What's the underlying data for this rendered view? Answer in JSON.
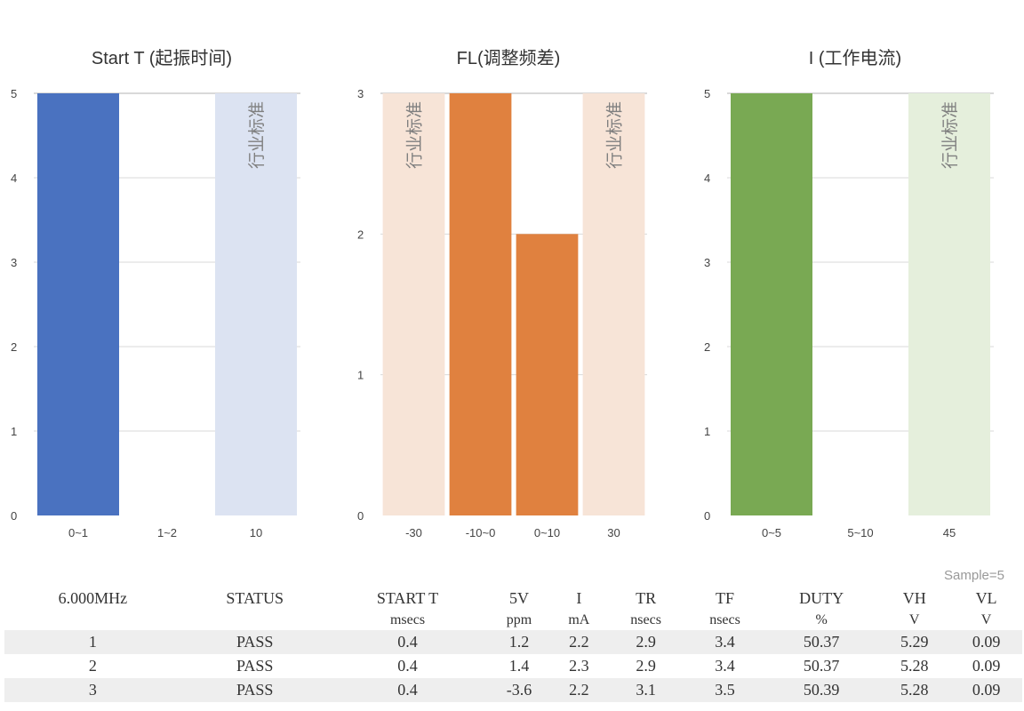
{
  "chart_data": [
    {
      "type": "bar",
      "title": "Start T (起振时间)",
      "categories": [
        "0~1",
        "1~2",
        "10"
      ],
      "values": [
        5,
        0,
        null
      ],
      "bands": [
        {
          "category": "10",
          "label": "行业标准"
        }
      ],
      "ylim": [
        0,
        5
      ],
      "yticks": [
        0,
        1,
        2,
        3,
        4,
        5
      ],
      "grid": true,
      "colors": {
        "bar": "#4a72c0",
        "band": "#dce3f2"
      }
    },
    {
      "type": "bar",
      "title": "FL(调整频差)",
      "categories": [
        "-30",
        "-10~0",
        "0~10",
        "30"
      ],
      "values": [
        null,
        3,
        2,
        null
      ],
      "bands": [
        {
          "category": "-30",
          "label": "行业标准"
        },
        {
          "category": "30",
          "label": "行业标准"
        }
      ],
      "ylim": [
        0,
        3
      ],
      "yticks": [
        0,
        1,
        2,
        3
      ],
      "grid": true,
      "colors": {
        "bar": "#e0813f",
        "band": "#f7e4d7"
      }
    },
    {
      "type": "bar",
      "title": "I (工作电流)",
      "categories": [
        "0~5",
        "5~10",
        "45"
      ],
      "values": [
        5,
        0,
        null
      ],
      "bands": [
        {
          "category": "45",
          "label": "行业标准"
        }
      ],
      "ylim": [
        0,
        5
      ],
      "yticks": [
        0,
        1,
        2,
        3,
        4,
        5
      ],
      "grid": true,
      "colors": {
        "bar": "#79a953",
        "band": "#e5efdc"
      }
    }
  ],
  "table": {
    "sample": "Sample=5",
    "headers": [
      "6.000MHz",
      "STATUS",
      "START T",
      "5V",
      "I",
      "TR",
      "TF",
      "DUTY",
      "VH",
      "VL"
    ],
    "units": [
      "",
      "",
      "msecs",
      "ppm",
      "mA",
      "nsecs",
      "nsecs",
      "%",
      "V",
      "V"
    ],
    "rows": [
      [
        "1",
        "PASS",
        "0.4",
        "1.2",
        "2.2",
        "2.9",
        "3.4",
        "50.37",
        "5.29",
        "0.09"
      ],
      [
        "2",
        "PASS",
        "0.4",
        "1.4",
        "2.3",
        "2.9",
        "3.4",
        "50.37",
        "5.28",
        "0.09"
      ],
      [
        "3",
        "PASS",
        "0.4",
        "-3.6",
        "2.2",
        "3.1",
        "3.5",
        "50.39",
        "5.28",
        "0.09"
      ]
    ]
  }
}
